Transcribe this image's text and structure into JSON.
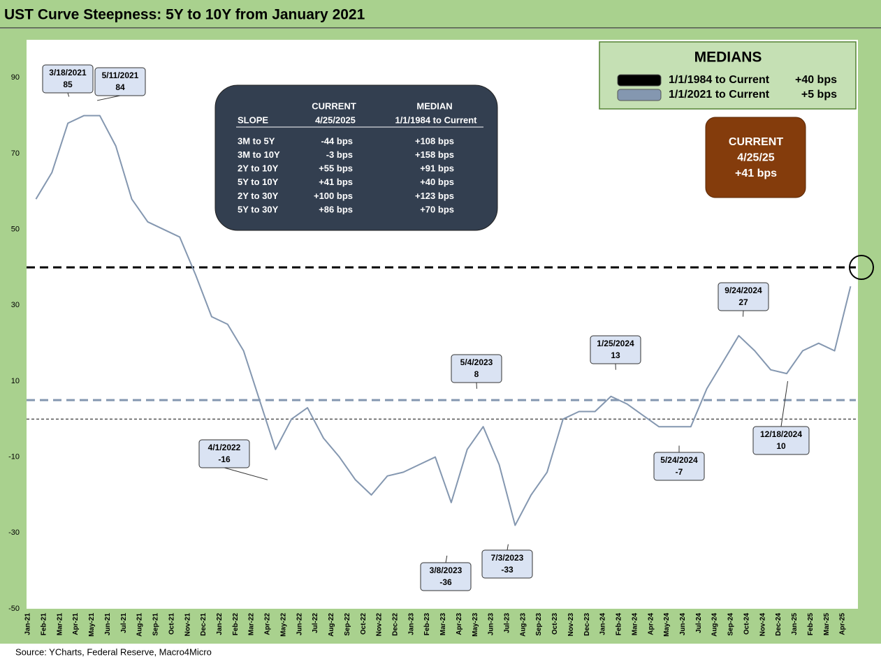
{
  "chart_data": {
    "type": "line",
    "title": "UST Curve Steepness: 5Y to 10Y from January 2021",
    "source": "Source: YCharts, Federal Reserve, Macro4Micro",
    "categories": [
      "Jan-21",
      "Feb-21",
      "Mar-21",
      "Apr-21",
      "May-21",
      "Jun-21",
      "Jul-21",
      "Aug-21",
      "Sep-21",
      "Oct-21",
      "Nov-21",
      "Dec-21",
      "Jan-22",
      "Feb-22",
      "Mar-22",
      "Apr-22",
      "May-22",
      "Jun-22",
      "Jul-22",
      "Aug-22",
      "Sep-22",
      "Oct-22",
      "Nov-22",
      "Dec-22",
      "Jan-23",
      "Feb-23",
      "Mar-23",
      "Apr-23",
      "May-23",
      "Jun-23",
      "Jul-23",
      "Aug-23",
      "Sep-23",
      "Oct-23",
      "Nov-23",
      "Dec-23",
      "Jan-24",
      "Feb-24",
      "Mar-24",
      "Apr-24",
      "May-24",
      "Jun-24",
      "Jul-24",
      "Aug-24",
      "Sep-24",
      "Oct-24",
      "Nov-24",
      "Dec-24",
      "Jan-25",
      "Feb-25",
      "Mar-25",
      "Apr-25"
    ],
    "series": [
      {
        "color": "#8497b0",
        "values": [
          58,
          65,
          78,
          80,
          80,
          72,
          58,
          52,
          50,
          48,
          38,
          27,
          25,
          18,
          5,
          -8,
          0,
          3,
          -5,
          -10,
          -16,
          -20,
          -15,
          -14,
          -12,
          -10,
          -22,
          -8,
          -2,
          -12,
          -28,
          -20,
          -14,
          0,
          2,
          2,
          6,
          4,
          1,
          -2,
          -2,
          -2,
          8,
          15,
          22,
          18,
          13,
          12,
          18,
          20,
          18,
          35
        ]
      }
    ],
    "ylim": [
      -50,
      100
    ],
    "yticks": [
      -50,
      -30,
      -10,
      10,
      30,
      50,
      70,
      90
    ],
    "medians": {
      "title": "MEDIANS",
      "lines": [
        {
          "name": "1/1/1984 to Current",
          "value": 40,
          "value_label": "+40 bps",
          "color": "#000000"
        },
        {
          "name": "1/1/2021 to Current",
          "value": 5,
          "value_label": "+5 bps",
          "color": "#8497b0"
        }
      ]
    },
    "current": {
      "title": "CURRENT",
      "date": "4/25/25",
      "value": "+41 bps"
    },
    "annotations": [
      {
        "date": "3/18/2021",
        "value": 85
      },
      {
        "date": "5/11/2021",
        "value": 84
      },
      {
        "date": "4/1/2022",
        "value": -16
      },
      {
        "date": "3/8/2023",
        "value": -36
      },
      {
        "date": "5/4/2023",
        "value": 8
      },
      {
        "date": "7/3/2023",
        "value": -33
      },
      {
        "date": "1/25/2024",
        "value": 13
      },
      {
        "date": "5/24/2024",
        "value": -7
      },
      {
        "date": "9/24/2024",
        "value": 27
      },
      {
        "date": "12/18/2024",
        "value": 10
      }
    ],
    "table": {
      "header": [
        "",
        "CURRENT",
        "MEDIAN"
      ],
      "subheader": [
        "SLOPE",
        "4/25/2025",
        "1/1/1984 to Current"
      ],
      "rows": [
        [
          "3M to 5Y",
          "-44 bps",
          "+108 bps"
        ],
        [
          "3M to 10Y",
          "-3 bps",
          "+158 bps"
        ],
        [
          "2Y to 10Y",
          "+55 bps",
          "+91 bps"
        ],
        [
          "5Y to 10Y",
          "+41 bps",
          "+40 bps"
        ],
        [
          "2Y to 30Y",
          "+100 bps",
          "+123 bps"
        ],
        [
          "5Y to 30Y",
          "+86 bps",
          "+70 bps"
        ]
      ]
    }
  }
}
